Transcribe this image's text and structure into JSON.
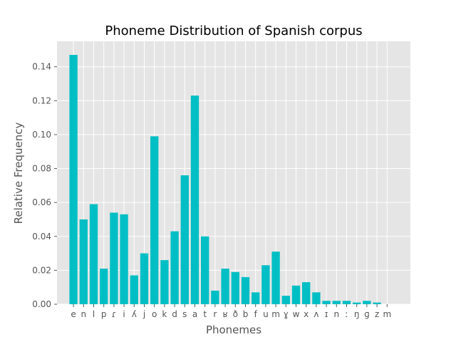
{
  "chart_data": {
    "type": "bar",
    "title": "Phoneme Distribution of Spanish corpus",
    "xlabel": "Phonemes",
    "ylabel": "Relative Frequency",
    "ylim": [
      0,
      0.155
    ],
    "yticks": [
      0.0,
      0.02,
      0.04,
      0.06,
      0.08,
      0.1,
      0.12,
      0.14
    ],
    "ytick_labels": [
      "0.00",
      "0.02",
      "0.04",
      "0.06",
      "0.08",
      "0.10",
      "0.12",
      "0.14"
    ],
    "grid": true,
    "bar_color": "#00bfc4",
    "background_color": "#e5e5e5",
    "categories": [
      "e",
      "n",
      "l",
      "p",
      "ɾ",
      "i",
      "ʎ",
      "j",
      "o",
      "k",
      "d",
      "s",
      "a",
      "t",
      "r",
      "ʁ",
      "ð",
      "b",
      "f",
      "u",
      "m",
      "ɣ",
      "w",
      "x",
      "ʌ",
      "ɪ",
      "n",
      "ː",
      "ŋ",
      "ɡ",
      "z",
      "m"
    ],
    "values": [
      0.147,
      0.05,
      0.059,
      0.021,
      0.054,
      0.053,
      0.017,
      0.03,
      0.099,
      0.026,
      0.043,
      0.076,
      0.123,
      0.04,
      0.008,
      0.021,
      0.019,
      0.016,
      0.007,
      0.023,
      0.031,
      0.005,
      0.011,
      0.013,
      0.007,
      0.002,
      0.002,
      0.002,
      0.001,
      0.002,
      0.001,
      0.0
    ]
  }
}
